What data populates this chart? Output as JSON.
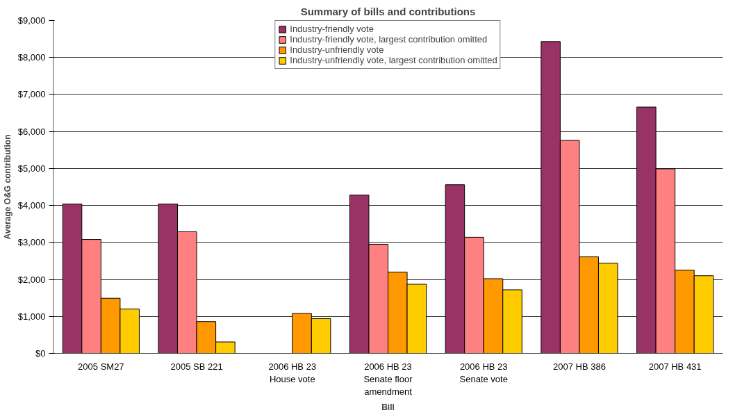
{
  "chart_data": {
    "type": "bar",
    "title": "Summary of bills and contributions",
    "xlabel": "Bill",
    "ylabel": "Average O&G contribution",
    "categories": [
      "2005 SM27",
      "2005 SB 221",
      "2006 HB 23 House vote",
      "2006 HB 23 Senate floor amendment",
      "2006 HB 23 Senate vote",
      "2007 HB 386",
      "2007 HB 431"
    ],
    "series": [
      {
        "name": "Industry-friendly vote",
        "color": "#993366",
        "values": [
          4040,
          4040,
          null,
          4280,
          4560,
          8430,
          6660
        ]
      },
      {
        "name": "Industry-friendly vote, largest contribution omitted",
        "color": "#ff8080",
        "values": [
          3080,
          3290,
          null,
          2950,
          3140,
          5760,
          4990
        ]
      },
      {
        "name": "Industry-unfriendly vote",
        "color": "#ff9900",
        "values": [
          1490,
          860,
          1080,
          2200,
          2020,
          2610,
          2250
        ]
      },
      {
        "name": "Industry-unfriendly vote, largest contribution omitted",
        "color": "#ffcc00",
        "values": [
          1200,
          310,
          940,
          1870,
          1720,
          2440,
          2100
        ]
      }
    ],
    "ylim": [
      0,
      9000
    ],
    "yticks": [
      {
        "value": 0,
        "label": "$0"
      },
      {
        "value": 1000,
        "label": "$1,000"
      },
      {
        "value": 2000,
        "label": "$2,000"
      },
      {
        "value": 3000,
        "label": "$3,000"
      },
      {
        "value": 4000,
        "label": "$4,000"
      },
      {
        "value": 5000,
        "label": "$5,000"
      },
      {
        "value": 6000,
        "label": "$6,000"
      },
      {
        "value": 7000,
        "label": "$7,000"
      },
      {
        "value": 8000,
        "label": "$8,000"
      },
      {
        "value": 9000,
        "label": "$9,000"
      }
    ],
    "grid": "y",
    "legend": "top"
  }
}
